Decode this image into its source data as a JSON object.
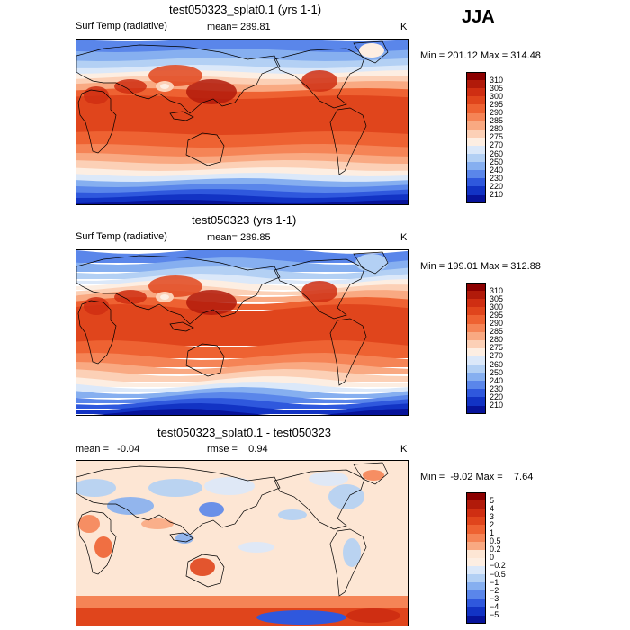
{
  "season": "JJA",
  "panels": [
    {
      "title": "test050323_splat0.1 (yrs 1-1)",
      "var_label": "Surf Temp (radiative)",
      "stat_text": "mean= 289.81",
      "stat2_text": "",
      "units": "K",
      "minmax": "Min = 201.12 Max = 314.48",
      "map_kind": "abs"
    },
    {
      "title": "test050323 (yrs 1-1)",
      "var_label": "Surf Temp (radiative)",
      "stat_text": "mean= 289.85",
      "stat2_text": "",
      "units": "K",
      "minmax": "Min = 199.01 Max = 312.88",
      "map_kind": "abs"
    },
    {
      "title": "test050323_splat0.1 - test050323",
      "var_label": "",
      "stat_text": "mean =   -0.04",
      "stat2_text": "rmse =    0.94",
      "units": "K",
      "minmax": "Min =  -9.02 Max =    7.64",
      "map_kind": "diff"
    }
  ],
  "abs_levels": [
    "310",
    "305",
    "300",
    "295",
    "290",
    "285",
    "280",
    "275",
    "270",
    "260",
    "250",
    "240",
    "230",
    "220",
    "210"
  ],
  "abs_colors": [
    "#8b0000",
    "#b11a0a",
    "#cf2e12",
    "#e0451c",
    "#ee6232",
    "#f58456",
    "#f9a982",
    "#fcd0b6",
    "#fdeee2",
    "#dbe8f9",
    "#b3d0f4",
    "#86aff0",
    "#5a86ea",
    "#2f58dd",
    "#1233c4",
    "#07139a"
  ],
  "diff_levels": [
    "5",
    "4",
    "3",
    "2",
    "1",
    "0.5",
    "0.2",
    "0",
    "−0.2",
    "−0.5",
    "−1",
    "−2",
    "−3",
    "−4",
    "−5"
  ],
  "diff_colors": [
    "#8b0000",
    "#b11a0a",
    "#cf2e12",
    "#e0451c",
    "#ee6232",
    "#f58456",
    "#f9a982",
    "#fde6d4",
    "#fdeee2",
    "#dbe8f9",
    "#b3d0f4",
    "#86aff0",
    "#5a86ea",
    "#2f58dd",
    "#1233c4",
    "#07139a"
  ],
  "chart_data": [
    {
      "type": "heatmap",
      "title": "test050323_splat0.1 (yrs 1-1)",
      "variable": "Surf Temp (radiative)",
      "units": "K",
      "mean": 289.81,
      "min": 201.12,
      "max": 314.48,
      "contour_levels": [
        210,
        220,
        230,
        240,
        250,
        260,
        270,
        275,
        280,
        285,
        290,
        295,
        300,
        305,
        310
      ]
    },
    {
      "type": "heatmap",
      "title": "test050323 (yrs 1-1)",
      "variable": "Surf Temp (radiative)",
      "units": "K",
      "mean": 289.85,
      "min": 199.01,
      "max": 312.88,
      "contour_levels": [
        210,
        220,
        230,
        240,
        250,
        260,
        270,
        275,
        280,
        285,
        290,
        295,
        300,
        305,
        310
      ]
    },
    {
      "type": "heatmap",
      "title": "test050323_splat0.1 - test050323",
      "units": "K",
      "mean": -0.04,
      "rmse": 0.94,
      "min": -9.02,
      "max": 7.64,
      "contour_levels": [
        -5,
        -4,
        -3,
        -2,
        -1,
        -0.5,
        -0.2,
        0,
        0.2,
        0.5,
        1,
        2,
        3,
        4,
        5
      ]
    }
  ]
}
